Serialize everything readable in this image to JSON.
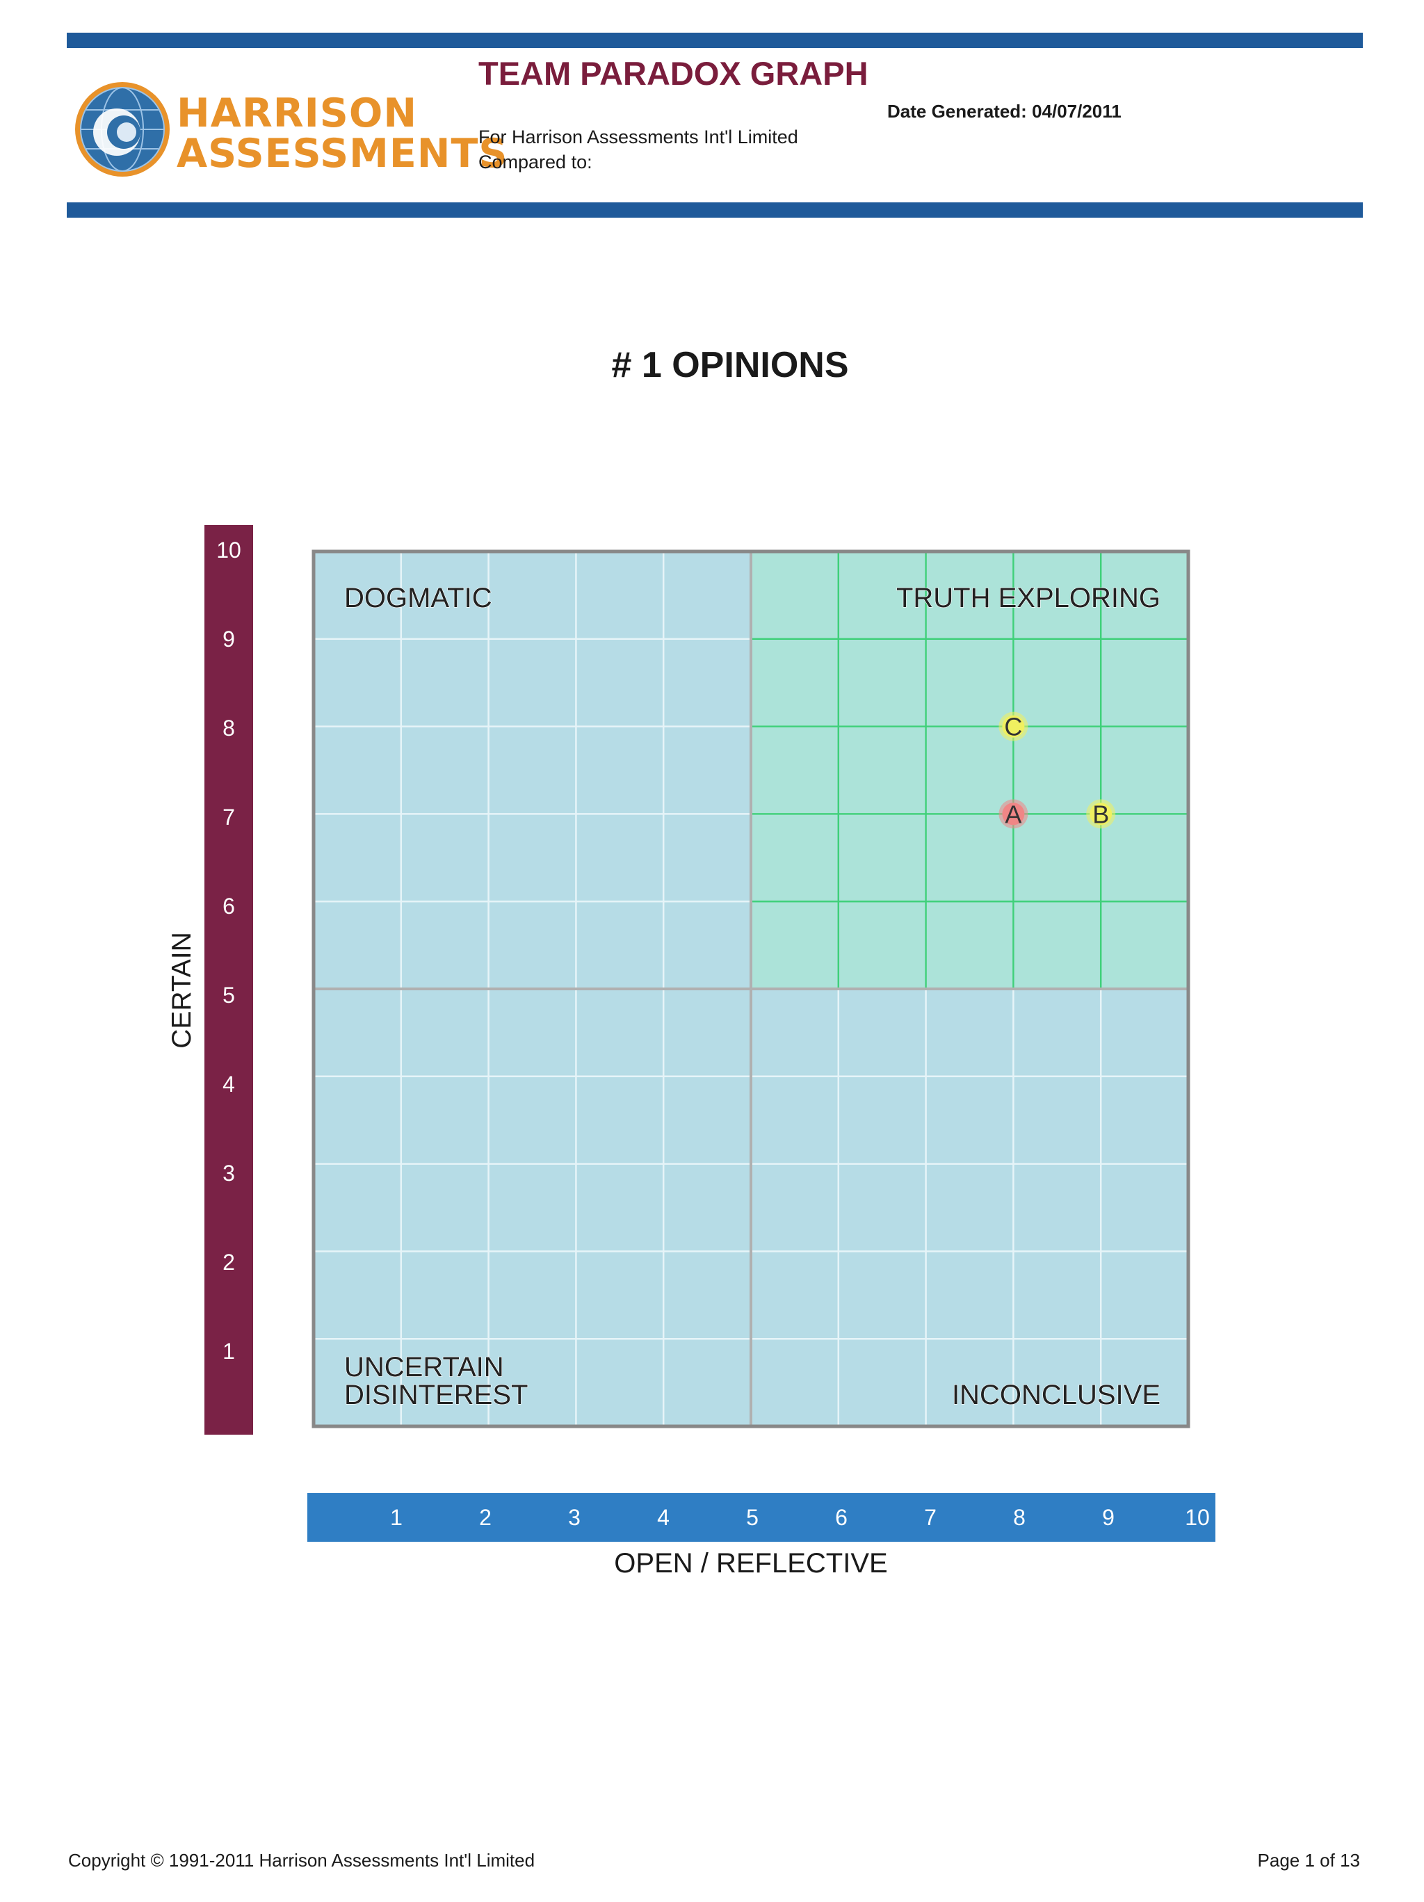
{
  "header": {
    "logo": {
      "line1": "HARRISON",
      "line2": "ASSESSMENTS",
      "icon": "globe-icon"
    },
    "title": "TEAM PARADOX GRAPH",
    "date_generated": "Date Generated: 04/07/2011",
    "for_line": "For Harrison Assessments Int'l Limited",
    "compared_line": "Compared to:"
  },
  "colors": {
    "header_bar": "#1f5a9a",
    "title": "#7a1d3c",
    "y_band": "#7a2246",
    "x_band": "#2f7ec4",
    "plot_fill": "#b6dce6",
    "highlight_fill": "#ace3d9",
    "highlight_grid": "#3fd07a",
    "marker_a": "#f08686",
    "marker_b": "#f0f060",
    "marker_c": "#f0f060"
  },
  "chart_data": {
    "type": "scatter",
    "title": "# 1 OPINIONS",
    "xlabel": "OPEN / REFLECTIVE",
    "ylabel": "CERTAIN",
    "xlim": [
      0,
      10
    ],
    "ylim": [
      0,
      10
    ],
    "x_ticks": [
      "1",
      "2",
      "3",
      "4",
      "5",
      "6",
      "7",
      "8",
      "9",
      "10"
    ],
    "y_ticks": [
      "1",
      "2",
      "3",
      "4",
      "5",
      "6",
      "7",
      "8",
      "9",
      "10"
    ],
    "grid": true,
    "quadrants": [
      {
        "name": "DOGMATIC",
        "position": "top-left",
        "highlighted": false
      },
      {
        "name": "TRUTH EXPLORING",
        "position": "top-right",
        "highlighted": true
      },
      {
        "name": "UNCERTAIN DISINTEREST",
        "lines": [
          "UNCERTAIN",
          "DISINTEREST"
        ],
        "position": "bottom-left",
        "highlighted": false
      },
      {
        "name": "INCONCLUSIVE",
        "position": "bottom-right",
        "highlighted": false
      }
    ],
    "points": [
      {
        "label": "A",
        "x": 8,
        "y": 7,
        "color": "#f08686"
      },
      {
        "label": "B",
        "x": 9,
        "y": 7,
        "color": "#f0f060"
      },
      {
        "label": "C",
        "x": 8,
        "y": 8,
        "color": "#f0f060"
      }
    ]
  },
  "footer": {
    "copyright": "Copyright © 1991-2011 Harrison Assessments Int'l Limited",
    "page": "Page 1 of 13"
  }
}
